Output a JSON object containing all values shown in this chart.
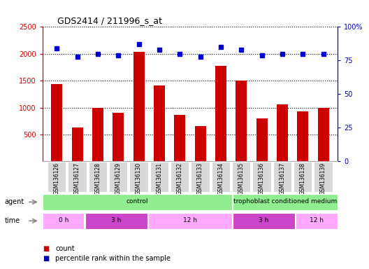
{
  "title": "GDS2414 / 211996_s_at",
  "samples": [
    "GSM136126",
    "GSM136127",
    "GSM136128",
    "GSM136129",
    "GSM136130",
    "GSM136131",
    "GSM136132",
    "GSM136133",
    "GSM136134",
    "GSM136135",
    "GSM136136",
    "GSM136137",
    "GSM136138",
    "GSM136139"
  ],
  "counts": [
    1440,
    630,
    1000,
    900,
    2030,
    1410,
    860,
    650,
    1780,
    1500,
    800,
    1060,
    930,
    1000
  ],
  "percentiles": [
    84,
    78,
    80,
    79,
    87,
    83,
    80,
    78,
    85,
    83,
    79,
    80,
    80,
    80
  ],
  "bar_color": "#cc0000",
  "dot_color": "#0000cc",
  "ylim_left": [
    0,
    2500
  ],
  "ylim_right": [
    0,
    100
  ],
  "yticks_left": [
    500,
    1000,
    1500,
    2000,
    2500
  ],
  "yticks_right": [
    0,
    25,
    50,
    75,
    100
  ],
  "agent_groups": [
    {
      "label": "control",
      "start": 0,
      "end": 9,
      "color": "#90ee90"
    },
    {
      "label": "trophoblast conditioned medium",
      "start": 9,
      "end": 14,
      "color": "#90ee90"
    }
  ],
  "time_groups": [
    {
      "label": "0 h",
      "start": 0,
      "end": 2,
      "color": "#ffaaff"
    },
    {
      "label": "3 h",
      "start": 2,
      "end": 5,
      "color": "#cc44cc"
    },
    {
      "label": "12 h",
      "start": 5,
      "end": 9,
      "color": "#ffaaff"
    },
    {
      "label": "3 h",
      "start": 9,
      "end": 12,
      "color": "#cc44cc"
    },
    {
      "label": "12 h",
      "start": 12,
      "end": 14,
      "color": "#ffaaff"
    }
  ],
  "legend_count_label": "count",
  "legend_pct_label": "percentile rank within the sample",
  "xticklabel_bg": "#d8d8d8",
  "agent_arrow_color": "#888888",
  "time_arrow_color": "#888888"
}
